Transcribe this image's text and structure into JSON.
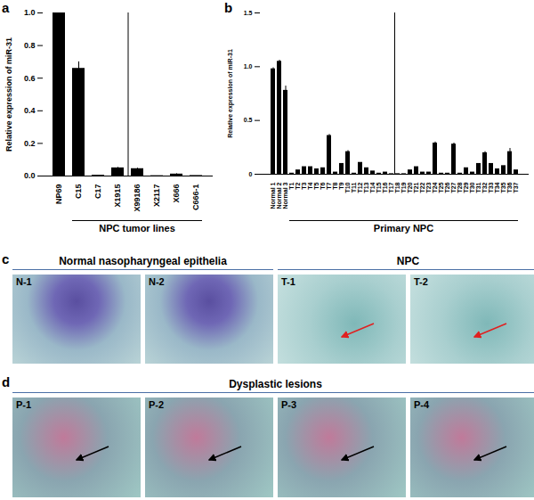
{
  "chart_data": [
    {
      "type": "bar",
      "panel_label": "a",
      "ylabel": "Relative expression of miR-31",
      "categories": [
        "NP69",
        "C15",
        "C17",
        "X1915",
        "X99186",
        "X2117",
        "X666",
        "C666-1"
      ],
      "values": [
        1.0,
        0.66,
        0.005,
        0.05,
        0.045,
        0.002,
        0.012,
        0.003
      ],
      "errors": [
        0,
        0.04,
        0,
        0.003,
        0.003,
        0,
        0.002,
        0
      ],
      "color": "#000000",
      "ylim": [
        0,
        1.0
      ],
      "yticks": [
        {
          "value": 0,
          "label": "0.0"
        },
        0.2,
        0.4,
        0.6,
        0.8,
        {
          "value": 1.0,
          "label": "1.0"
        }
      ],
      "group": {
        "label": "NPC tumor lines",
        "from": "C15",
        "to": "C666-1"
      }
    },
    {
      "type": "bar",
      "panel_label": "b",
      "ylabel": "Relative expression of miR-31",
      "categories": [
        "Normal 1",
        "Normal 2",
        "Normal 3",
        "T1",
        "T2",
        "T3",
        "T4",
        "T5",
        "T6",
        "T7",
        "T8",
        "T9",
        "T10",
        "T11",
        "T12",
        "T13",
        "T14",
        "T15",
        "T16",
        "T17",
        "T18",
        "T19",
        "T20",
        "T21",
        "T22",
        "T23",
        "T24",
        "T25",
        "T26",
        "T27",
        "T28",
        "T29",
        "T30",
        "T31",
        "T32",
        "T33",
        "T34",
        "T35",
        "T36",
        "T37"
      ],
      "values": [
        0.98,
        1.05,
        0.78,
        0.01,
        0.04,
        0.07,
        0.07,
        0.05,
        0.06,
        0.36,
        0.02,
        0.1,
        0.21,
        0.01,
        0.11,
        0.06,
        0.03,
        0.01,
        0.02,
        0.005,
        0.005,
        0.005,
        0.04,
        0.07,
        0.02,
        0.02,
        0.29,
        0.01,
        0.01,
        0.28,
        0.01,
        0.06,
        0.02,
        0.1,
        0.2,
        0.1,
        0.05,
        0.08,
        0.21,
        0.04
      ],
      "errors": [
        0.01,
        0.01,
        0.04,
        0,
        0,
        0,
        0,
        0,
        0,
        0.01,
        0,
        0,
        0.01,
        0,
        0,
        0,
        0,
        0,
        0,
        0,
        0,
        0,
        0,
        0,
        0,
        0,
        0.01,
        0,
        0,
        0.01,
        0,
        0,
        0,
        0,
        0.01,
        0,
        0,
        0,
        0.03,
        0
      ],
      "color": "#000000",
      "ylim": [
        0,
        1.5
      ],
      "yticks": [
        0,
        0.5,
        {
          "value": 1.0,
          "label": "1.0"
        },
        1.5
      ],
      "group": {
        "label": "Primary NPC",
        "from": "T1",
        "to": "T37"
      }
    }
  ],
  "panels": [
    {
      "panel_label": "c",
      "groups": [
        {
          "label": "Normal nasopharyngeal epithelia",
          "images": [
            "N-1",
            "N-2"
          ]
        },
        {
          "label": "NPC",
          "images": [
            "T-1",
            "T-2"
          ]
        }
      ]
    },
    {
      "panel_label": "d",
      "groups": [
        {
          "label": "Dysplastic lesions",
          "images": [
            "P-1",
            "P-2",
            "P-3",
            "P-4"
          ]
        }
      ]
    }
  ]
}
